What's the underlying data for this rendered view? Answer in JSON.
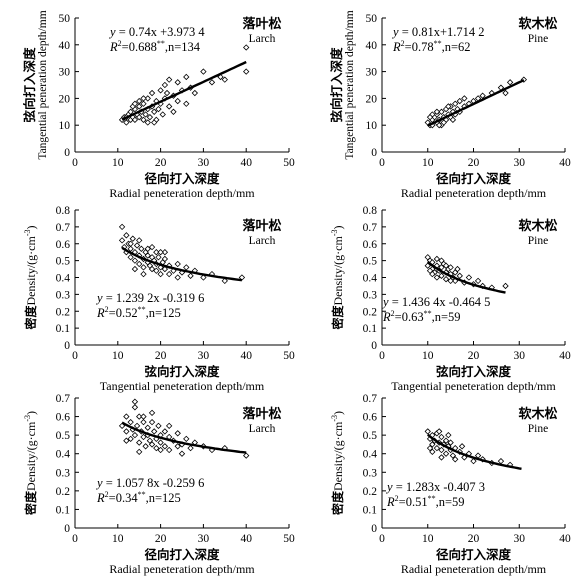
{
  "chart_data": [
    {
      "id": "larch_tan_vs_rad",
      "type": "scatter",
      "species_cn": "落叶松",
      "species_en": "Larch",
      "xlabel_cn": "径向打入深度",
      "xlabel_en": "Radial peneteration depth/mm",
      "ylabel_cn": "弦向打入深度",
      "ylabel_en": "Tangential peneration depth/mm",
      "xlim": [
        0,
        50
      ],
      "ylim": [
        0,
        50
      ],
      "xticks": [
        "0",
        "10",
        "20",
        "30",
        "40",
        "50"
      ],
      "yticks": [
        "0",
        "10",
        "20",
        "30",
        "40",
        "50"
      ],
      "eq": "y = 0.74x +3.973 4",
      "r2_prefix": "R",
      "r2_value": "=0.688",
      "r2_stars": "**",
      "n_text": ",n=134",
      "fit": {
        "kind": "linear",
        "a": 0.74,
        "b": 3.9734,
        "xrange": [
          11,
          40
        ]
      },
      "points": [
        [
          11,
          12
        ],
        [
          11.5,
          13
        ],
        [
          12,
          11
        ],
        [
          12.5,
          14
        ],
        [
          13,
          12
        ],
        [
          13,
          15
        ],
        [
          13.5,
          13
        ],
        [
          14,
          16
        ],
        [
          14,
          12
        ],
        [
          14.5,
          14
        ],
        [
          15,
          17
        ],
        [
          15,
          13
        ],
        [
          15,
          19
        ],
        [
          15.5,
          15
        ],
        [
          16,
          12
        ],
        [
          16,
          18
        ],
        [
          16.5,
          14
        ],
        [
          17,
          16
        ],
        [
          17,
          20
        ],
        [
          17.5,
          13
        ],
        [
          18,
          17
        ],
        [
          18,
          22
        ],
        [
          18.5,
          15
        ],
        [
          19,
          19
        ],
        [
          19,
          12
        ],
        [
          19.5,
          16
        ],
        [
          20,
          18
        ],
        [
          20,
          23
        ],
        [
          20.5,
          14
        ],
        [
          21,
          20
        ],
        [
          21,
          25
        ],
        [
          22,
          17
        ],
        [
          22,
          27
        ],
        [
          23,
          21
        ],
        [
          24,
          19
        ],
        [
          24,
          26
        ],
        [
          25,
          23
        ],
        [
          26,
          28
        ],
        [
          27,
          24
        ],
        [
          28,
          22
        ],
        [
          30,
          30
        ],
        [
          32,
          26
        ],
        [
          34,
          28
        ],
        [
          35,
          27
        ],
        [
          40,
          39
        ],
        [
          40,
          30
        ],
        [
          12,
          13
        ],
        [
          13.5,
          17
        ],
        [
          16,
          20
        ],
        [
          18.5,
          11
        ],
        [
          21.5,
          22
        ],
        [
          23,
          15
        ],
        [
          26,
          18
        ],
        [
          14,
          18
        ],
        [
          17,
          11
        ]
      ]
    },
    {
      "id": "pine_tan_vs_rad",
      "type": "scatter",
      "species_cn": "软木松",
      "species_en": "Pine",
      "xlabel_cn": "径向打入深度",
      "xlabel_en": "Radial peneteration depth/mm",
      "ylabel_cn": "弦向打入深度",
      "ylabel_en": "Tangential peneration depth/mm",
      "xlim": [
        0,
        40
      ],
      "ylim": [
        0,
        50
      ],
      "xticks": [
        "0",
        "10",
        "20",
        "30",
        "40"
      ],
      "yticks": [
        "0",
        "10",
        "20",
        "30",
        "40",
        "50"
      ],
      "eq": "y = 0.81x+1.714 2",
      "r2_prefix": "R",
      "r2_value": "=0.78",
      "r2_stars": "**",
      "n_text": ",n=62",
      "fit": {
        "kind": "linear",
        "a": 0.81,
        "b": 1.7142,
        "xrange": [
          10,
          31
        ]
      },
      "points": [
        [
          10,
          11
        ],
        [
          10.5,
          10
        ],
        [
          11,
          12
        ],
        [
          11,
          10
        ],
        [
          11.5,
          13
        ],
        [
          12,
          11
        ],
        [
          12,
          14
        ],
        [
          12.5,
          12
        ],
        [
          13,
          10
        ],
        [
          13,
          15
        ],
        [
          13.5,
          13
        ],
        [
          14,
          12
        ],
        [
          14,
          16
        ],
        [
          14.5,
          14
        ],
        [
          15,
          13
        ],
        [
          15,
          17
        ],
        [
          15.5,
          15
        ],
        [
          16,
          14
        ],
        [
          16,
          18
        ],
        [
          16.5,
          16
        ],
        [
          17,
          15
        ],
        [
          18,
          17
        ],
        [
          18,
          20
        ],
        [
          19,
          18
        ],
        [
          20,
          19
        ],
        [
          21,
          20
        ],
        [
          22,
          21
        ],
        [
          24,
          22
        ],
        [
          26,
          24
        ],
        [
          27,
          22
        ],
        [
          28,
          26
        ],
        [
          31,
          27
        ],
        [
          11,
          14
        ],
        [
          12.5,
          10
        ],
        [
          13.5,
          11
        ],
        [
          14.5,
          17
        ],
        [
          15.5,
          12
        ],
        [
          17,
          19
        ],
        [
          10.5,
          13
        ],
        [
          12,
          15
        ]
      ]
    },
    {
      "id": "larch_den_vs_tan",
      "type": "scatter",
      "species_cn": "落叶松",
      "species_en": "Larch",
      "xlabel_cn": "弦向打入深度",
      "xlabel_en": "Tangential peneteration depth/mm",
      "ylabel_cn": "密度",
      "ylabel_en": "Density/(g·cm",
      "xlim": [
        0,
        50
      ],
      "ylim": [
        0,
        0.8
      ],
      "xticks": [
        "0",
        "10",
        "20",
        "30",
        "40",
        "50"
      ],
      "yticks": [
        "0",
        "0.1",
        "0.2",
        "0.3",
        "0.4",
        "0.5",
        "0.6",
        "0.7",
        "0.8"
      ],
      "eq": "y = 1.239 2x -0.319 6",
      "r2_prefix": "R",
      "r2_value": "=0.52",
      "r2_stars": "**",
      "n_text": ",n=125",
      "fit": {
        "kind": "power",
        "a": 1.2392,
        "b": -0.3196,
        "xrange": [
          11,
          39
        ]
      },
      "points": [
        [
          11,
          0.7
        ],
        [
          11,
          0.62
        ],
        [
          11.5,
          0.58
        ],
        [
          12,
          0.65
        ],
        [
          12,
          0.55
        ],
        [
          12.5,
          0.6
        ],
        [
          13,
          0.52
        ],
        [
          13,
          0.57
        ],
        [
          13.5,
          0.63
        ],
        [
          14,
          0.5
        ],
        [
          14,
          0.55
        ],
        [
          14.5,
          0.59
        ],
        [
          15,
          0.48
        ],
        [
          15,
          0.53
        ],
        [
          15.5,
          0.57
        ],
        [
          16,
          0.51
        ],
        [
          16,
          0.46
        ],
        [
          16.5,
          0.55
        ],
        [
          17,
          0.49
        ],
        [
          17,
          0.53
        ],
        [
          17.5,
          0.47
        ],
        [
          18,
          0.52
        ],
        [
          18,
          0.45
        ],
        [
          18.5,
          0.5
        ],
        [
          19,
          0.48
        ],
        [
          19,
          0.44
        ],
        [
          19.5,
          0.52
        ],
        [
          20,
          0.46
        ],
        [
          20,
          0.42
        ],
        [
          20.5,
          0.49
        ],
        [
          21,
          0.45
        ],
        [
          21,
          0.55
        ],
        [
          22,
          0.47
        ],
        [
          22,
          0.42
        ],
        [
          23,
          0.44
        ],
        [
          24,
          0.48
        ],
        [
          24,
          0.4
        ],
        [
          25,
          0.43
        ],
        [
          26,
          0.46
        ],
        [
          27,
          0.41
        ],
        [
          28,
          0.44
        ],
        [
          30,
          0.4
        ],
        [
          32,
          0.42
        ],
        [
          35,
          0.38
        ],
        [
          39,
          0.4
        ],
        [
          13,
          0.6
        ],
        [
          15,
          0.62
        ],
        [
          17,
          0.57
        ],
        [
          19,
          0.55
        ],
        [
          21,
          0.51
        ],
        [
          14,
          0.45
        ],
        [
          16,
          0.42
        ],
        [
          18,
          0.58
        ],
        [
          20,
          0.55
        ]
      ]
    },
    {
      "id": "pine_den_vs_tan",
      "type": "scatter",
      "species_cn": "软木松",
      "species_en": "Pine",
      "xlabel_cn": "弦向打入深度",
      "xlabel_en": "Tangential peneteration depth/mm",
      "ylabel_cn": "密度",
      "ylabel_en": "Density/(g·cm",
      "xlim": [
        0,
        40
      ],
      "ylim": [
        0,
        0.8
      ],
      "xticks": [
        "0",
        "10",
        "20",
        "30",
        "40"
      ],
      "yticks": [
        "0",
        "0.1",
        "0.2",
        "0.3",
        "0.4",
        "0.5",
        "0.6",
        "0.7",
        "0.8"
      ],
      "eq": "y = 1.436 4x -0.464 5",
      "r2_prefix": "R",
      "r2_value": "=0.63",
      "r2_stars": "**",
      "n_text": ",n=59",
      "fit": {
        "kind": "power",
        "a": 1.4364,
        "b": -0.4645,
        "xrange": [
          10,
          27
        ]
      },
      "points": [
        [
          10,
          0.52
        ],
        [
          10,
          0.47
        ],
        [
          10.5,
          0.5
        ],
        [
          11,
          0.45
        ],
        [
          11,
          0.49
        ],
        [
          11.5,
          0.43
        ],
        [
          12,
          0.47
        ],
        [
          12,
          0.51
        ],
        [
          12.5,
          0.44
        ],
        [
          13,
          0.46
        ],
        [
          13,
          0.41
        ],
        [
          13.5,
          0.48
        ],
        [
          14,
          0.43
        ],
        [
          14,
          0.39
        ],
        [
          14.5,
          0.45
        ],
        [
          15,
          0.42
        ],
        [
          15,
          0.46
        ],
        [
          15.5,
          0.4
        ],
        [
          16,
          0.43
        ],
        [
          16,
          0.38
        ],
        [
          17,
          0.41
        ],
        [
          18,
          0.37
        ],
        [
          19,
          0.4
        ],
        [
          20,
          0.36
        ],
        [
          21,
          0.38
        ],
        [
          22,
          0.35
        ],
        [
          24,
          0.34
        ],
        [
          27,
          0.35
        ],
        [
          11,
          0.42
        ],
        [
          12,
          0.4
        ],
        [
          13,
          0.5
        ],
        [
          14,
          0.47
        ],
        [
          15,
          0.38
        ],
        [
          10.5,
          0.44
        ],
        [
          16.5,
          0.45
        ]
      ]
    },
    {
      "id": "larch_den_vs_rad",
      "type": "scatter",
      "species_cn": "落叶松",
      "species_en": "Larch",
      "xlabel_cn": "径向打入深度",
      "xlabel_en": "Radial peneteration depth/mm",
      "ylabel_cn": "密度",
      "ylabel_en": "Density/(g·cm",
      "xlim": [
        0,
        50
      ],
      "ylim": [
        0,
        0.7
      ],
      "xticks": [
        "0",
        "10",
        "20",
        "30",
        "40",
        "50"
      ],
      "yticks": [
        "0",
        "0.1",
        "0.2",
        "0.3",
        "0.4",
        "0.5",
        "0.6",
        "0.7"
      ],
      "eq": "y = 1.057 8x -0.259 6",
      "r2_prefix": "R",
      "r2_value": "=0.34",
      "r2_stars": "**",
      "n_text": ",n=125",
      "fit": {
        "kind": "power",
        "a": 1.0578,
        "b": -0.2596,
        "xrange": [
          11,
          40
        ]
      },
      "points": [
        [
          11,
          0.55
        ],
        [
          12,
          0.6
        ],
        [
          12,
          0.52
        ],
        [
          13,
          0.57
        ],
        [
          13,
          0.48
        ],
        [
          13.5,
          0.53
        ],
        [
          14,
          0.65
        ],
        [
          14,
          0.5
        ],
        [
          14.5,
          0.55
        ],
        [
          15,
          0.6
        ],
        [
          15,
          0.46
        ],
        [
          15.5,
          0.52
        ],
        [
          16,
          0.57
        ],
        [
          16,
          0.49
        ],
        [
          16.5,
          0.44
        ],
        [
          17,
          0.54
        ],
        [
          17,
          0.5
        ],
        [
          17.5,
          0.47
        ],
        [
          18,
          0.62
        ],
        [
          18,
          0.45
        ],
        [
          18.5,
          0.52
        ],
        [
          19,
          0.48
        ],
        [
          19,
          0.43
        ],
        [
          19.5,
          0.55
        ],
        [
          20,
          0.5
        ],
        [
          20,
          0.46
        ],
        [
          21,
          0.52
        ],
        [
          21,
          0.44
        ],
        [
          22,
          0.49
        ],
        [
          22,
          0.42
        ],
        [
          23,
          0.47
        ],
        [
          24,
          0.51
        ],
        [
          24,
          0.44
        ],
        [
          25,
          0.45
        ],
        [
          26,
          0.48
        ],
        [
          27,
          0.43
        ],
        [
          28,
          0.46
        ],
        [
          30,
          0.44
        ],
        [
          32,
          0.42
        ],
        [
          35,
          0.43
        ],
        [
          40,
          0.39
        ],
        [
          14,
          0.68
        ],
        [
          16,
          0.6
        ],
        [
          18,
          0.57
        ],
        [
          20,
          0.42
        ],
        [
          22,
          0.55
        ],
        [
          25,
          0.4
        ],
        [
          12,
          0.47
        ],
        [
          15,
          0.41
        ]
      ]
    },
    {
      "id": "pine_den_vs_rad",
      "type": "scatter",
      "species_cn": "软木松",
      "species_en": "Pine",
      "xlabel_cn": "径向打入深度",
      "xlabel_en": "Radial peneteration depth/mm",
      "ylabel_cn": "密度",
      "ylabel_en": "Density/(g·cm",
      "xlim": [
        0,
        40
      ],
      "ylim": [
        0,
        0.7
      ],
      "xticks": [
        "0",
        "10",
        "20",
        "30",
        "40"
      ],
      "yticks": [
        "0",
        "0.1",
        "0.2",
        "0.3",
        "0.4",
        "0.5",
        "0.6",
        "0.7"
      ],
      "eq": "y = 1.283x -0.407 3",
      "r2_prefix": "R",
      "r2_value": "=0.51",
      "r2_stars": "**",
      "n_text": ",n=59",
      "fit": {
        "kind": "power",
        "a": 1.283,
        "b": -0.4073,
        "xrange": [
          10,
          30.5
        ]
      },
      "points": [
        [
          10,
          0.52
        ],
        [
          10.5,
          0.48
        ],
        [
          11,
          0.5
        ],
        [
          11,
          0.45
        ],
        [
          11.5,
          0.47
        ],
        [
          12,
          0.43
        ],
        [
          12,
          0.51
        ],
        [
          12.5,
          0.46
        ],
        [
          13,
          0.49
        ],
        [
          13,
          0.42
        ],
        [
          13.5,
          0.45
        ],
        [
          14,
          0.47
        ],
        [
          14,
          0.4
        ],
        [
          14.5,
          0.44
        ],
        [
          15,
          0.42
        ],
        [
          15,
          0.46
        ],
        [
          15.5,
          0.39
        ],
        [
          16,
          0.43
        ],
        [
          16,
          0.37
        ],
        [
          17,
          0.41
        ],
        [
          18,
          0.38
        ],
        [
          19,
          0.4
        ],
        [
          20,
          0.36
        ],
        [
          21,
          0.39
        ],
        [
          22,
          0.37
        ],
        [
          24,
          0.35
        ],
        [
          26,
          0.36
        ],
        [
          28,
          0.34
        ],
        [
          11,
          0.41
        ],
        [
          12.5,
          0.52
        ],
        [
          13,
          0.38
        ],
        [
          14.5,
          0.5
        ],
        [
          10.5,
          0.43
        ],
        [
          17.5,
          0.44
        ]
      ]
    }
  ]
}
